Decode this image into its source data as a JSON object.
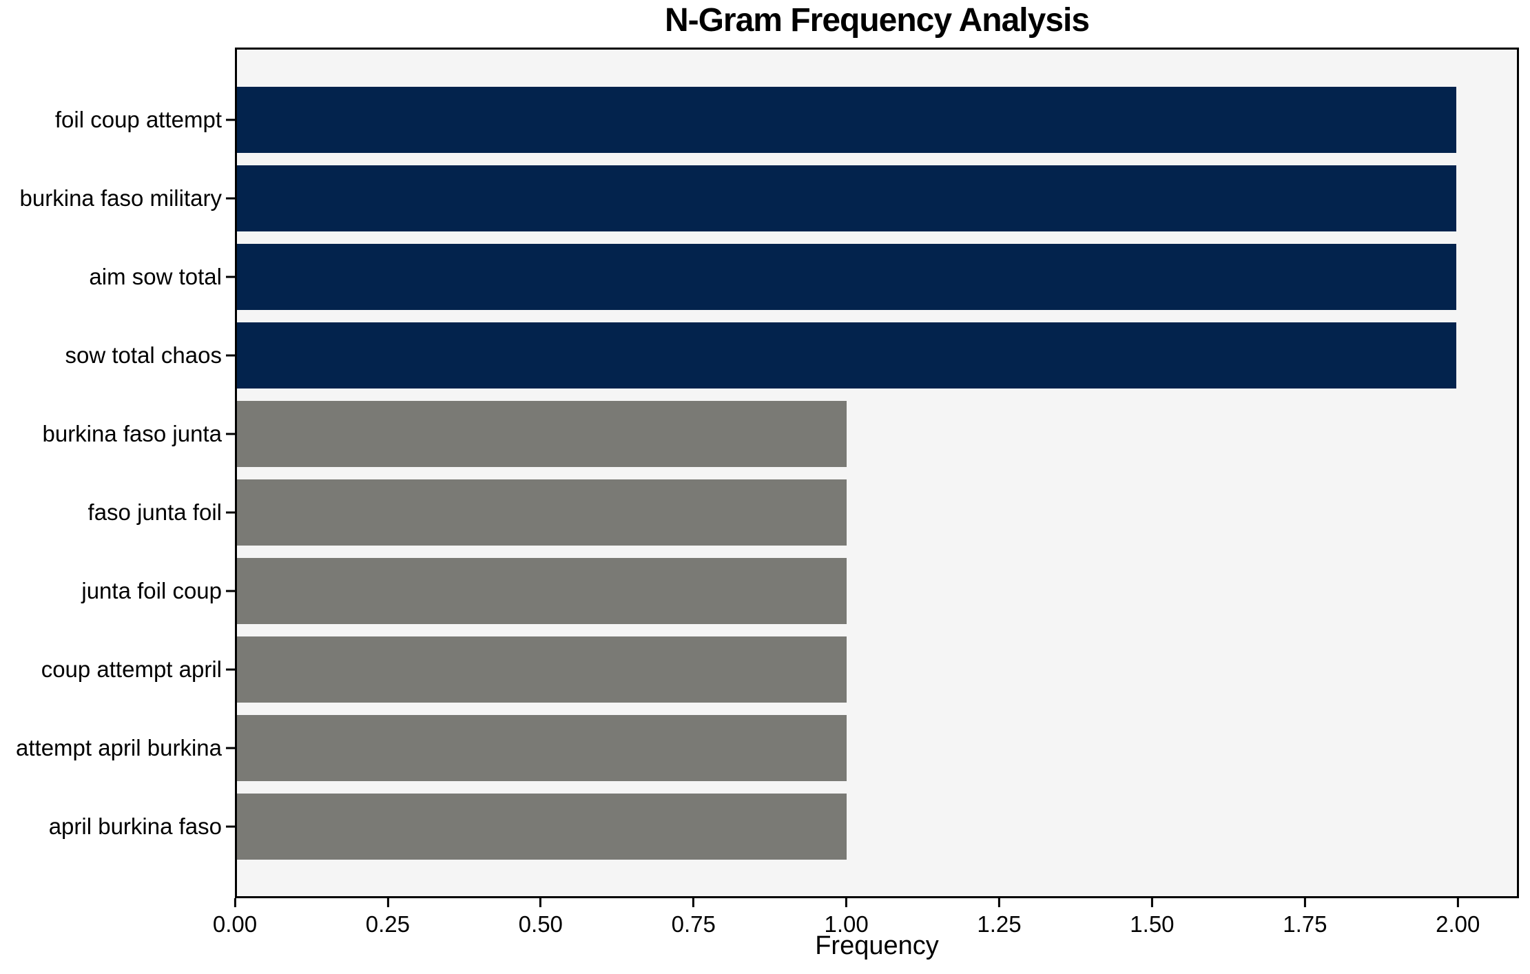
{
  "chart_data": {
    "type": "bar",
    "orientation": "horizontal",
    "title": "N-Gram Frequency Analysis",
    "xlabel": "Frequency",
    "ylabel": "",
    "categories": [
      "foil coup attempt",
      "burkina faso military",
      "aim sow total",
      "sow total chaos",
      "burkina faso junta",
      "faso junta foil",
      "junta foil coup",
      "coup attempt april",
      "attempt april burkina",
      "april burkina faso"
    ],
    "values": [
      2,
      2,
      2,
      2,
      1,
      1,
      1,
      1,
      1,
      1
    ],
    "bar_colors": [
      "#03234d",
      "#03234d",
      "#03234d",
      "#03234d",
      "#7a7a75",
      "#7a7a75",
      "#7a7a75",
      "#7a7a75",
      "#7a7a75",
      "#7a7a75"
    ],
    "xlim": [
      0,
      2.1
    ],
    "x_tick_values": [
      0,
      0.25,
      0.5,
      0.75,
      1.0,
      1.25,
      1.5,
      1.75,
      2.0
    ],
    "x_tick_labels": [
      "0.00",
      "0.25",
      "0.50",
      "0.75",
      "1.00",
      "1.25",
      "1.50",
      "1.75",
      "2.00"
    ],
    "grid": false,
    "legend": "none",
    "plot_background": "#f5f5f5",
    "figure_background": "#ffffff",
    "frame_color": "#000000"
  }
}
